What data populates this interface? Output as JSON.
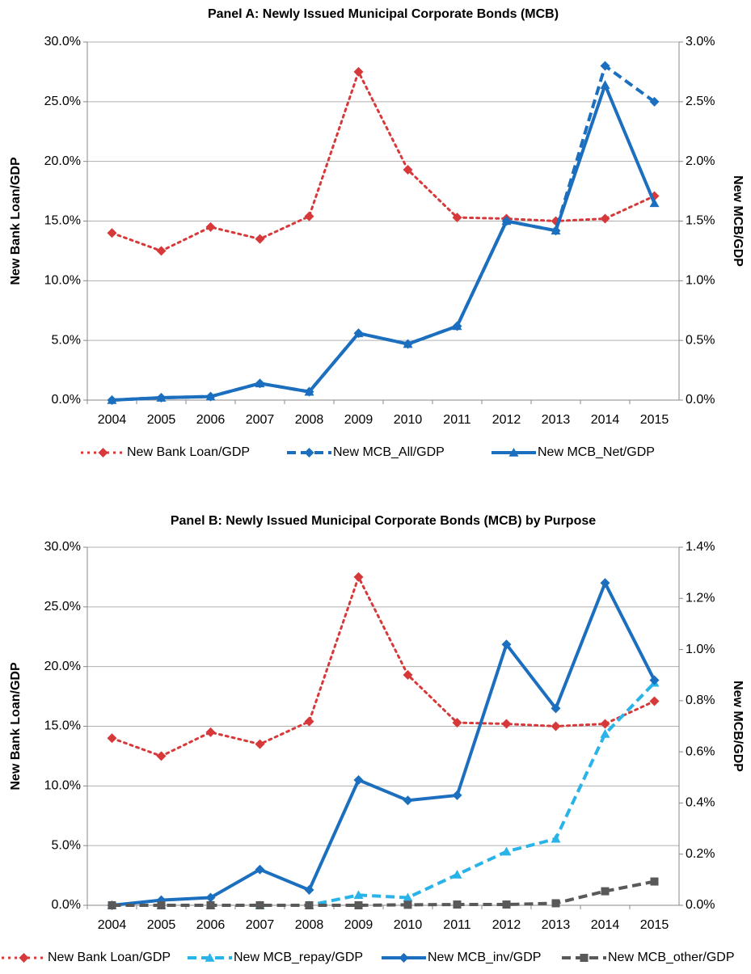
{
  "chart_data": [
    {
      "type": "line",
      "title": "Panel A: Newly Issued Municipal Corporate Bonds (MCB)",
      "y_label": "New Bank Loan/GDP",
      "y2_label": "New MCB/GDP",
      "categories": [
        "2004",
        "2005",
        "2006",
        "2007",
        "2008",
        "2009",
        "2010",
        "2011",
        "2012",
        "2013",
        "2014",
        "2015"
      ],
      "ylim": [
        0,
        30
      ],
      "yticks": [
        {
          "value": 0,
          "label": "0.0%"
        },
        {
          "value": 5,
          "label": "5.0%"
        },
        {
          "value": 10,
          "label": "10.0%"
        },
        {
          "value": 15,
          "label": "15.0%"
        },
        {
          "value": 20,
          "label": "20.0%"
        },
        {
          "value": 25,
          "label": "25.0%"
        },
        {
          "value": 30,
          "label": "30.0%"
        }
      ],
      "y2lim": [
        0,
        3
      ],
      "y2ticks": [
        {
          "value": 0,
          "label": "0.0%"
        },
        {
          "value": 0.5,
          "label": "0.5%"
        },
        {
          "value": 1,
          "label": "1.0%"
        },
        {
          "value": 1.5,
          "label": "1.5%"
        },
        {
          "value": 2,
          "label": "2.0%"
        },
        {
          "value": 2.5,
          "label": "2.5%"
        },
        {
          "value": 3,
          "label": "3.0%"
        }
      ],
      "grid": true,
      "series": [
        {
          "name": "New Bank Loan/GDP",
          "color": "#d7393a",
          "line_style": "dotted",
          "marker": "diamond",
          "values": [
            14.0,
            12.5,
            14.5,
            13.5,
            15.4,
            27.5,
            19.3,
            15.3,
            15.2,
            15.0,
            15.2,
            17.1
          ]
        },
        {
          "name": "New MCB_All/GDP",
          "color": "#1b6fbe",
          "line_style": "dashed",
          "marker": "diamond",
          "axis": "y2",
          "values": [
            0,
            0.02,
            0.03,
            0.14,
            0.07,
            0.56,
            0.47,
            0.62,
            1.5,
            1.42,
            2.8,
            2.5
          ]
        },
        {
          "name": "New MCB_Net/GDP",
          "color": "#1b6fbe",
          "line_style": "solid",
          "marker": "triangle",
          "axis": "y2",
          "values": [
            0,
            0.02,
            0.03,
            0.14,
            0.07,
            0.56,
            0.47,
            0.62,
            1.5,
            1.42,
            2.64,
            1.65
          ]
        }
      ]
    },
    {
      "type": "line",
      "title": "Panel B: Newly Issued Municipal Corporate Bonds (MCB)  by Purpose",
      "y_label": "New Bank Loan/GDP",
      "y2_label": "New MCB/GDP",
      "categories": [
        "2004",
        "2005",
        "2006",
        "2007",
        "2008",
        "2009",
        "2010",
        "2011",
        "2012",
        "2013",
        "2014",
        "2015"
      ],
      "ylim": [
        0,
        30
      ],
      "yticks": [
        {
          "value": 0,
          "label": "0.0%"
        },
        {
          "value": 5,
          "label": "5.0%"
        },
        {
          "value": 10,
          "label": "10.0%"
        },
        {
          "value": 15,
          "label": "15.0%"
        },
        {
          "value": 20,
          "label": "20.0%"
        },
        {
          "value": 25,
          "label": "25.0%"
        },
        {
          "value": 30,
          "label": "30.0%"
        }
      ],
      "y2lim": [
        0,
        1.4
      ],
      "y2ticks": [
        {
          "value": 0,
          "label": "0.0%"
        },
        {
          "value": 0.2,
          "label": "0.2%"
        },
        {
          "value": 0.4,
          "label": "0.4%"
        },
        {
          "value": 0.6,
          "label": "0.6%"
        },
        {
          "value": 0.8,
          "label": "0.8%"
        },
        {
          "value": 1,
          "label": "1.0%"
        },
        {
          "value": 1.2,
          "label": "1.2%"
        },
        {
          "value": 1.4,
          "label": "1.4%"
        }
      ],
      "grid": true,
      "series": [
        {
          "name": "New Bank Loan/GDP",
          "color": "#d7393a",
          "line_style": "dotted",
          "marker": "diamond",
          "values": [
            14.0,
            12.5,
            14.5,
            13.5,
            15.4,
            27.5,
            19.3,
            15.3,
            15.2,
            15.0,
            15.2,
            17.1
          ]
        },
        {
          "name": "New MCB_repay/GDP",
          "color": "#29b3e8",
          "line_style": "dashed",
          "marker": "triangle",
          "axis": "y2",
          "values": [
            0,
            0,
            0,
            0,
            0,
            0.04,
            0.03,
            0.12,
            0.21,
            0.26,
            0.67,
            0.87
          ]
        },
        {
          "name": "New MCB_inv/GDP",
          "color": "#1b6fbe",
          "line_style": "solid",
          "marker": "diamond",
          "axis": "y2",
          "values": [
            0,
            0.02,
            0.03,
            0.14,
            0.06,
            0.49,
            0.41,
            0.43,
            1.02,
            0.77,
            1.26,
            0.88
          ]
        },
        {
          "name": "New MCB_other/GDP",
          "color": "#595959",
          "line_style": "dashed",
          "marker": "square",
          "axis": "y2",
          "values": [
            0,
            0,
            0,
            0,
            0,
            0,
            0.002,
            0.003,
            0.003,
            0.008,
            0.055,
            0.093
          ]
        }
      ]
    }
  ]
}
